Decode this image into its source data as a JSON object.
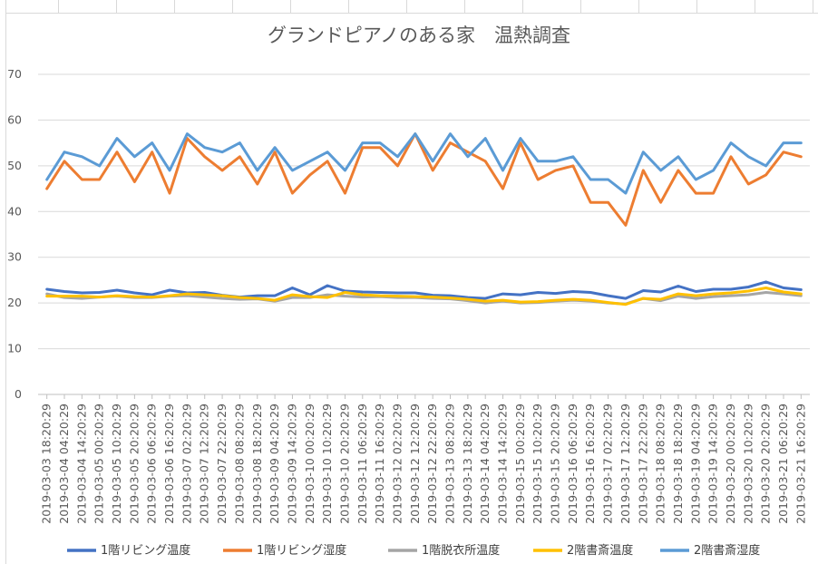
{
  "chart_data": {
    "type": "line",
    "title": "グランドピアノのある家　温熱調査",
    "xlabel": "",
    "ylabel": "",
    "ylim": [
      0,
      70
    ],
    "yticks": [
      0,
      10,
      20,
      30,
      40,
      50,
      60,
      70
    ],
    "grid": true,
    "legend_position": "bottom",
    "x_tick_labels": [
      "2019-03-03 18:20:29",
      "2019-03-04 04:20:29",
      "2019-03-04 14:20:29",
      "2019-03-05 00:20:29",
      "2019-03-05 10:20:29",
      "2019-03-05 20:20:29",
      "2019-03-06 06:20:29",
      "2019-03-06 16:20:29",
      "2019-03-07 02:20:29",
      "2019-03-07 12:20:29",
      "2019-03-07 22:20:29",
      "2019-03-08 08:20:29",
      "2019-03-08 18:20:29",
      "2019-03-09 04:20:29",
      "2019-03-09 14:20:29",
      "2019-03-10 00:20:29",
      "2019-03-10 10:20:29",
      "2019-03-10 20:20:29",
      "2019-03-11 06:20:29",
      "2019-03-11 16:20:29",
      "2019-03-12 02:20:29",
      "2019-03-12 12:20:29",
      "2019-03-12 22:20:29",
      "2019-03-13 08:20:29",
      "2019-03-13 18:20:29",
      "2019-03-14 04:20:29",
      "2019-03-14 14:20:29",
      "2019-03-15 00:20:29",
      "2019-03-15 10:20:29",
      "2019-03-15 20:20:29",
      "2019-03-16 06:20:29",
      "2019-03-16 16:20:29",
      "2019-03-17 02:20:29",
      "2019-03-17 12:20:29",
      "2019-03-17 22:20:29",
      "2019-03-18 08:20:29",
      "2019-03-18 18:20:29",
      "2019-03-19 04:20:29",
      "2019-03-19 14:20:29",
      "2019-03-20 00:20:29",
      "2019-03-20 10:20:29",
      "2019-03-20 20:20:29",
      "2019-03-21 06:20:29",
      "2019-03-21 16:20:29"
    ],
    "x": [
      "2019-03-03 18:20:29",
      "2019-03-04 04:20:29",
      "2019-03-04 14:20:29",
      "2019-03-05 00:20:29",
      "2019-03-05 10:20:29",
      "2019-03-05 20:20:29",
      "2019-03-06 06:20:29",
      "2019-03-06 16:20:29",
      "2019-03-07 02:20:29",
      "2019-03-07 12:20:29",
      "2019-03-07 22:20:29",
      "2019-03-08 08:20:29",
      "2019-03-08 18:20:29",
      "2019-03-09 04:20:29",
      "2019-03-09 14:20:29",
      "2019-03-10 00:20:29",
      "2019-03-10 10:20:29",
      "2019-03-10 20:20:29",
      "2019-03-11 06:20:29",
      "2019-03-11 16:20:29",
      "2019-03-12 02:20:29",
      "2019-03-12 12:20:29",
      "2019-03-12 22:20:29",
      "2019-03-13 08:20:29",
      "2019-03-13 18:20:29",
      "2019-03-14 04:20:29",
      "2019-03-14 14:20:29",
      "2019-03-15 00:20:29",
      "2019-03-15 10:20:29",
      "2019-03-15 20:20:29",
      "2019-03-16 06:20:29",
      "2019-03-16 16:20:29",
      "2019-03-17 02:20:29",
      "2019-03-17 12:20:29",
      "2019-03-17 22:20:29",
      "2019-03-18 08:20:29",
      "2019-03-18 18:20:29",
      "2019-03-19 04:20:29",
      "2019-03-19 14:20:29",
      "2019-03-20 00:20:29",
      "2019-03-20 10:20:29",
      "2019-03-20 20:20:29",
      "2019-03-21 06:20:29",
      "2019-03-21 16:20:29"
    ],
    "series": [
      {
        "name": "1階リビング温度",
        "color": "#4472c4",
        "values": [
          23,
          22.5,
          22.2,
          22.3,
          22.8,
          22.2,
          21.8,
          22.8,
          22.2,
          22.3,
          21.7,
          21.3,
          21.6,
          21.6,
          23.3,
          21.8,
          23.8,
          22.6,
          22.4,
          22.3,
          22.2,
          22.2,
          21.7,
          21.6,
          21.2,
          21,
          22,
          21.8,
          22.3,
          22.1,
          22.5,
          22.3,
          21.6,
          21,
          22.7,
          22.4,
          23.7,
          22.5,
          23,
          23,
          23.5,
          24.6,
          23.3,
          22.9
        ]
      },
      {
        "name": "1階リビング湿度",
        "color": "#ed7d31",
        "values": [
          45,
          51,
          47,
          47,
          53,
          46.5,
          53,
          44,
          56,
          52,
          49,
          52,
          46,
          53,
          44,
          48,
          51,
          44,
          54,
          54,
          50,
          57,
          49,
          55,
          53,
          51,
          45,
          55,
          47,
          49,
          50,
          42,
          42,
          37,
          49,
          42,
          49,
          44,
          44,
          52,
          46,
          48,
          53,
          52
        ]
      },
      {
        "name": "1階脱衣所温度",
        "color": "#a5a5a5",
        "values": [
          22,
          21.2,
          21,
          21.3,
          21.5,
          21.2,
          21.2,
          21.5,
          21.6,
          21.3,
          21,
          20.8,
          20.9,
          20.4,
          21.2,
          21.2,
          21.8,
          21.5,
          21.3,
          21.4,
          21.2,
          21.2,
          21,
          20.9,
          20.5,
          20,
          20.4,
          20,
          20.1,
          20.4,
          20.6,
          20.4,
          20,
          19.8,
          21,
          20.5,
          21.5,
          21,
          21.4,
          21.6,
          21.8,
          22.3,
          22,
          21.6
        ]
      },
      {
        "name": "2階書斎温度",
        "color": "#ffc000",
        "values": [
          21.5,
          21.5,
          21.5,
          21.3,
          21.6,
          21.4,
          21.3,
          21.6,
          22,
          21.8,
          21.6,
          21.2,
          21,
          20.6,
          21.8,
          21.4,
          21.2,
          22.3,
          21.8,
          21.6,
          21.5,
          21.4,
          21.3,
          21.1,
          20.8,
          20.4,
          20.6,
          20.2,
          20.3,
          20.6,
          20.8,
          20.6,
          20.1,
          19.7,
          21,
          20.8,
          22,
          21.6,
          22,
          22.2,
          22.6,
          23.3,
          22.4,
          22
        ]
      },
      {
        "name": "2階書斎湿度",
        "color": "#5b9bd5",
        "values": [
          47,
          53,
          52,
          50,
          56,
          52,
          55,
          49,
          57,
          54,
          53,
          55,
          49,
          54,
          49,
          51,
          53,
          49,
          55,
          55,
          52,
          57,
          51,
          57,
          52,
          56,
          49,
          56,
          51,
          51,
          52,
          47,
          47,
          44,
          53,
          49,
          52,
          47,
          49,
          55,
          52,
          50,
          55,
          55
        ]
      }
    ]
  }
}
